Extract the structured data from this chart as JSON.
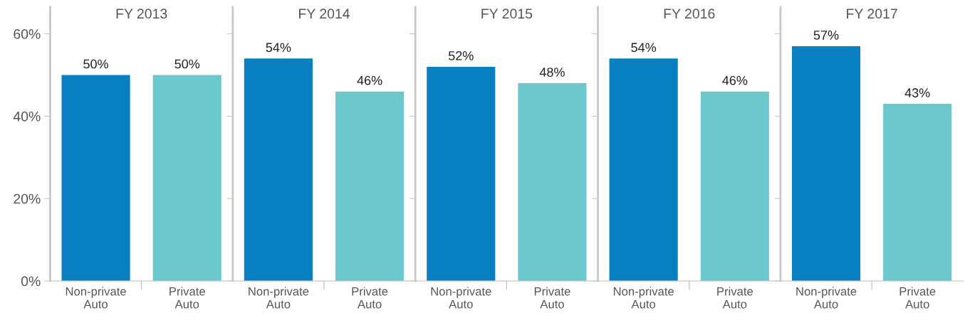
{
  "chart_data": [
    {
      "type": "bar",
      "title": "FY 2013",
      "categories": [
        "Non-private\nAuto",
        "Private\nAuto"
      ],
      "values": [
        50,
        50
      ],
      "colors": [
        "#077fc1",
        "#6cc8cc"
      ],
      "value_labels": [
        "50%",
        "50%"
      ],
      "ylim": [
        0,
        66.5
      ],
      "yticks": [
        {
          "value": 0,
          "label": "0%"
        },
        {
          "value": 20,
          "label": "20%"
        },
        {
          "value": 40,
          "label": "40%"
        },
        {
          "value": 60,
          "label": "60%"
        }
      ],
      "grid": false,
      "legend": false
    },
    {
      "type": "bar",
      "title": "FY 2014",
      "categories": [
        "Non-private\nAuto",
        "Private\nAuto"
      ],
      "values": [
        54,
        46
      ],
      "colors": [
        "#077fc1",
        "#6cc8cc"
      ],
      "value_labels": [
        "54%",
        "46%"
      ],
      "ylim": [
        0,
        66.5
      ],
      "tick_labels": "x",
      "grid": false,
      "legend": false
    },
    {
      "type": "bar",
      "title": "FY 2015",
      "categories": [
        "Non-private\nAuto",
        "Private\nAuto"
      ],
      "values": [
        52,
        48
      ],
      "colors": [
        "#077fc1",
        "#6cc8cc"
      ],
      "value_labels": [
        "52%",
        "48%"
      ],
      "ylim": [
        0,
        66.5
      ],
      "tick_labels": "x",
      "grid": false,
      "legend": false
    },
    {
      "type": "bar",
      "title": "FY 2016",
      "categories": [
        "Non-private\nAuto",
        "Private\nAuto"
      ],
      "values": [
        54,
        46
      ],
      "colors": [
        "#077fc1",
        "#6cc8cc"
      ],
      "value_labels": [
        "54%",
        "46%"
      ],
      "ylim": [
        0,
        66.5
      ],
      "tick_labels": "x",
      "grid": false,
      "legend": false
    },
    {
      "type": "bar",
      "title": "FY 2017",
      "categories": [
        "Non-private\nAuto",
        "Private\nAuto"
      ],
      "values": [
        57,
        43
      ],
      "colors": [
        "#077fc1",
        "#6cc8cc"
      ],
      "value_labels": [
        "57%",
        "43%"
      ],
      "ylim": [
        0,
        66.5
      ],
      "tick_labels": "x",
      "grid": false,
      "legend": false
    }
  ]
}
